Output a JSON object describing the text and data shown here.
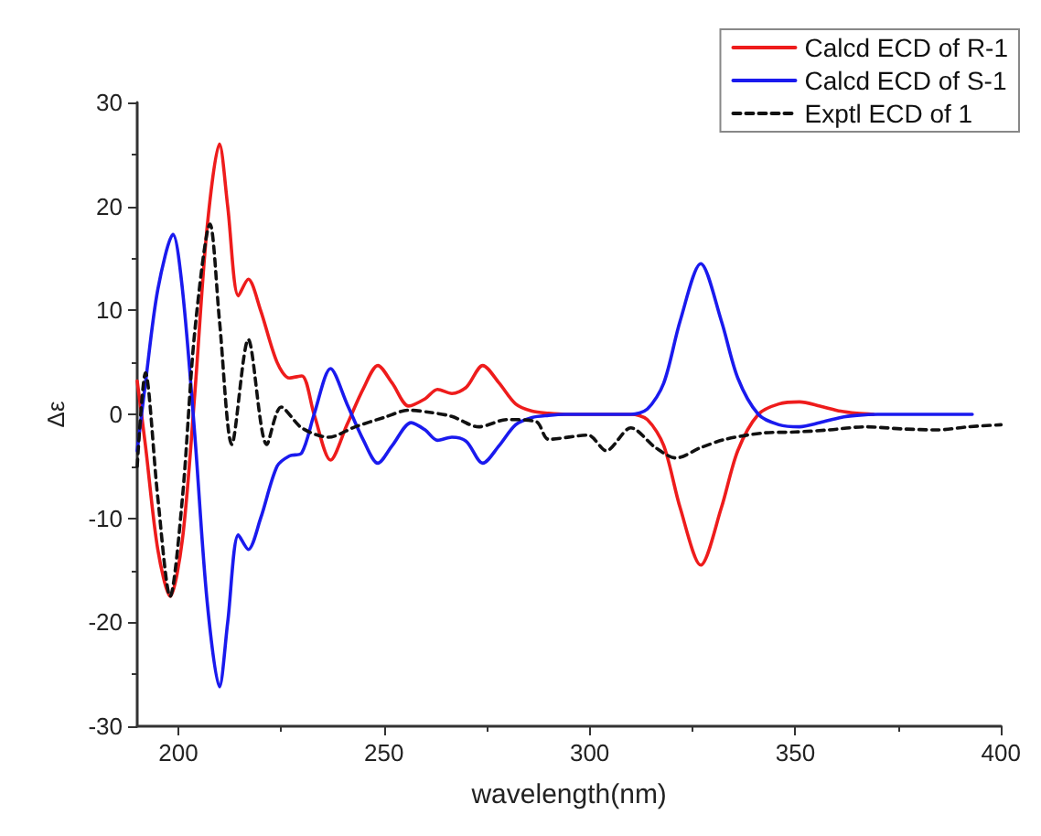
{
  "chart_data": {
    "type": "line",
    "xlabel": "wavelength(nm)",
    "ylabel": "Δε",
    "xlim": [
      190,
      400
    ],
    "xticks": [
      200,
      250,
      300,
      350,
      400
    ],
    "ylim": [
      -30,
      30
    ],
    "yticks": [
      -30,
      -20,
      -10,
      0,
      10,
      20,
      30
    ],
    "grid": false,
    "legend": "top right",
    "marker": "none",
    "series": [
      {
        "name": "Calcd ECD of R-1",
        "color": "#ee1c1c",
        "line_style": "solid",
        "x": [
          190,
          192,
          195,
          198,
          201,
          204,
          207,
          210,
          212,
          214.6,
          217,
          220,
          224,
          227,
          230,
          233,
          237,
          241,
          245,
          248.5,
          252,
          256,
          260,
          263,
          266.5,
          270,
          274,
          278,
          282,
          286,
          290,
          294,
          300,
          305,
          310,
          314,
          318,
          322,
          327,
          332,
          336,
          341,
          346,
          351,
          356,
          361,
          365,
          369
        ],
        "values": [
          3.2,
          -3,
          -13,
          -17.5,
          -12,
          2,
          18,
          26,
          20,
          11.4,
          13,
          10,
          5,
          3.5,
          3.7,
          0,
          -4.4,
          -1,
          2.5,
          4.7,
          3,
          0.8,
          1.5,
          2.4,
          2,
          2.6,
          4.7,
          3,
          1,
          0.3,
          0.1,
          0,
          0,
          0,
          0,
          -0.5,
          -3,
          -9,
          -14.5,
          -9,
          -3.5,
          0,
          1,
          1.2,
          0.8,
          0.3,
          0.1,
          0
        ]
      },
      {
        "name": "Calcd ECD of S-1",
        "color": "#1a1aee",
        "line_style": "solid",
        "x": [
          190,
          192,
          195,
          198.7,
          201,
          204,
          207,
          210,
          212,
          214.6,
          217,
          220,
          224,
          227,
          230,
          233,
          237,
          241,
          245,
          248.5,
          252,
          256.6,
          260,
          263,
          266.5,
          270,
          274,
          278,
          282,
          286,
          290,
          294,
          300,
          305,
          310,
          314,
          318,
          322,
          327,
          332,
          336,
          341,
          346,
          351,
          356,
          361,
          365,
          370,
          380,
          393
        ],
        "values": [
          -3.5,
          3,
          12,
          17.3,
          12,
          -2,
          -18,
          -26.2,
          -20,
          -11.6,
          -13,
          -10,
          -5,
          -4,
          -3.7,
          0,
          4.4,
          1,
          -2.5,
          -4.7,
          -3,
          -0.8,
          -1.5,
          -2.5,
          -2.2,
          -2.6,
          -4.7,
          -3,
          -1,
          -0.3,
          -0.1,
          0,
          0,
          0,
          0,
          0.5,
          3,
          9,
          14.5,
          9,
          3.5,
          0,
          -1,
          -1.2,
          -0.8,
          -0.3,
          -0.1,
          0,
          0,
          0
        ]
      },
      {
        "name": "Exptl ECD of 1",
        "color": "#111111",
        "line_style": "dashed",
        "x": [
          190,
          192,
          195,
          198,
          201,
          204,
          207.7,
          210,
          213,
          217,
          221.5,
          225,
          230,
          236.5,
          243,
          250,
          256,
          261,
          266.5,
          273,
          280,
          287,
          290,
          299.6,
          304,
          310,
          316,
          321,
          327,
          333,
          342,
          350,
          358,
          367,
          376,
          384.5,
          392,
          400
        ],
        "values": [
          -5,
          4,
          -8,
          -17.5,
          -8,
          8,
          18.3,
          9,
          -2.9,
          7.2,
          -2.9,
          0.7,
          -1.3,
          -2.2,
          -1.2,
          -0.3,
          0.4,
          0.2,
          -0.2,
          -1.2,
          -0.5,
          -0.7,
          -2.4,
          -2,
          -3.5,
          -1.3,
          -3.2,
          -4.2,
          -3.2,
          -2.4,
          -1.8,
          -1.7,
          -1.5,
          -1.2,
          -1.4,
          -1.5,
          -1.2,
          -1.0
        ]
      }
    ]
  }
}
